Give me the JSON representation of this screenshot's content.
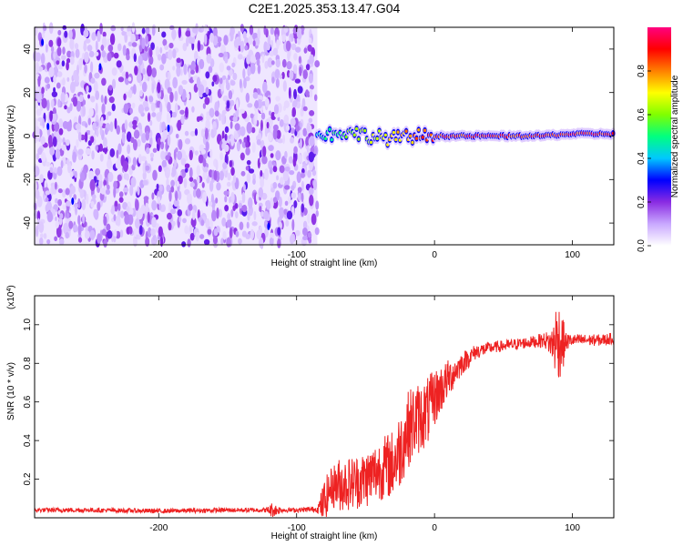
{
  "chart_data": [
    {
      "type": "heatmap",
      "title": "C2E1.2025.353.13.47.G04",
      "xlabel": "Height of straight line (km)",
      "ylabel": "Frequency (Hz)",
      "xlim": [
        -290,
        130
      ],
      "ylim": [
        -50,
        50
      ],
      "xticks": [
        -200,
        -100,
        0,
        100
      ],
      "yticks": [
        -40,
        -20,
        0,
        20,
        40
      ],
      "colorbar": {
        "label": "Normalized spectral amplitude",
        "range": [
          0.0,
          1.0
        ],
        "ticks": [
          "0.0",
          "0.2",
          "0.4",
          "0.6",
          "0.8"
        ],
        "tick_values": [
          0.0,
          0.2,
          0.4,
          0.6,
          0.8
        ],
        "colors": [
          "#ffffff",
          "#c9a8ff",
          "#8a2be2",
          "#0000ff",
          "#00c8ff",
          "#00ff80",
          "#80ff00",
          "#ffff00",
          "#ff8000",
          "#ff0000",
          "#ff0080"
        ]
      },
      "regions": [
        {
          "name": "broadband noise",
          "x_range": [
            -290,
            -85
          ],
          "freq_range": [
            -50,
            50
          ],
          "amplitude": 0.1
        },
        {
          "name": "carrier track",
          "x_range": [
            -85,
            130
          ],
          "center_freq_hz": 0,
          "amplitude_range": [
            0.4,
            1.0
          ]
        }
      ],
      "carrier_track": {
        "x": [
          -85,
          -75,
          -65,
          -55,
          -45,
          -35,
          -25,
          -15,
          -5,
          5,
          25,
          50,
          75,
          100,
          130
        ],
        "freq": [
          0,
          1,
          2,
          1,
          0,
          -1,
          -1,
          0,
          0,
          0,
          0,
          0,
          0,
          1,
          1
        ],
        "amp": [
          0.45,
          0.55,
          0.6,
          0.65,
          0.7,
          0.75,
          0.8,
          0.85,
          0.9,
          0.92,
          0.95,
          0.95,
          0.95,
          0.95,
          0.95
        ]
      }
    },
    {
      "type": "line",
      "xlabel": "Height of straight line (km)",
      "ylabel": "SNR (10 * v/v)",
      "scale_label": "(x10",
      "scale_exponent": "4",
      "scale_suffix": ")",
      "xlim": [
        -290,
        130
      ],
      "ylim": [
        0.0,
        1.15
      ],
      "xticks": [
        -200,
        -100,
        0,
        100
      ],
      "yticks": [
        0.2,
        0.4,
        0.6,
        0.8,
        1.0
      ],
      "color": "#ee2222",
      "series": [
        {
          "name": "SNR",
          "x": [
            -290,
            -250,
            -200,
            -150,
            -122,
            -118,
            -110,
            -100,
            -85,
            -80,
            -75,
            -70,
            -60,
            -50,
            -40,
            -30,
            -25,
            -20,
            -15,
            -10,
            -5,
            0,
            10,
            20,
            30,
            40,
            50,
            60,
            70,
            80,
            85,
            88,
            91,
            93,
            95,
            100,
            110,
            120,
            130
          ],
          "center": [
            0.04,
            0.04,
            0.035,
            0.04,
            0.04,
            0.04,
            0.04,
            0.04,
            0.045,
            0.08,
            0.16,
            0.17,
            0.18,
            0.2,
            0.25,
            0.28,
            0.35,
            0.45,
            0.5,
            0.52,
            0.55,
            0.62,
            0.72,
            0.8,
            0.86,
            0.88,
            0.89,
            0.9,
            0.91,
            0.92,
            0.9,
            0.92,
            0.92,
            0.9,
            0.91,
            0.92,
            0.92,
            0.92,
            0.93
          ],
          "noise": [
            0.012,
            0.012,
            0.012,
            0.012,
            0.012,
            0.04,
            0.012,
            0.012,
            0.015,
            0.12,
            0.1,
            0.14,
            0.14,
            0.15,
            0.16,
            0.18,
            0.2,
            0.2,
            0.2,
            0.18,
            0.18,
            0.15,
            0.1,
            0.06,
            0.04,
            0.03,
            0.03,
            0.03,
            0.03,
            0.04,
            0.08,
            0.2,
            0.2,
            0.15,
            0.05,
            0.03,
            0.03,
            0.03,
            0.03
          ]
        }
      ]
    }
  ]
}
